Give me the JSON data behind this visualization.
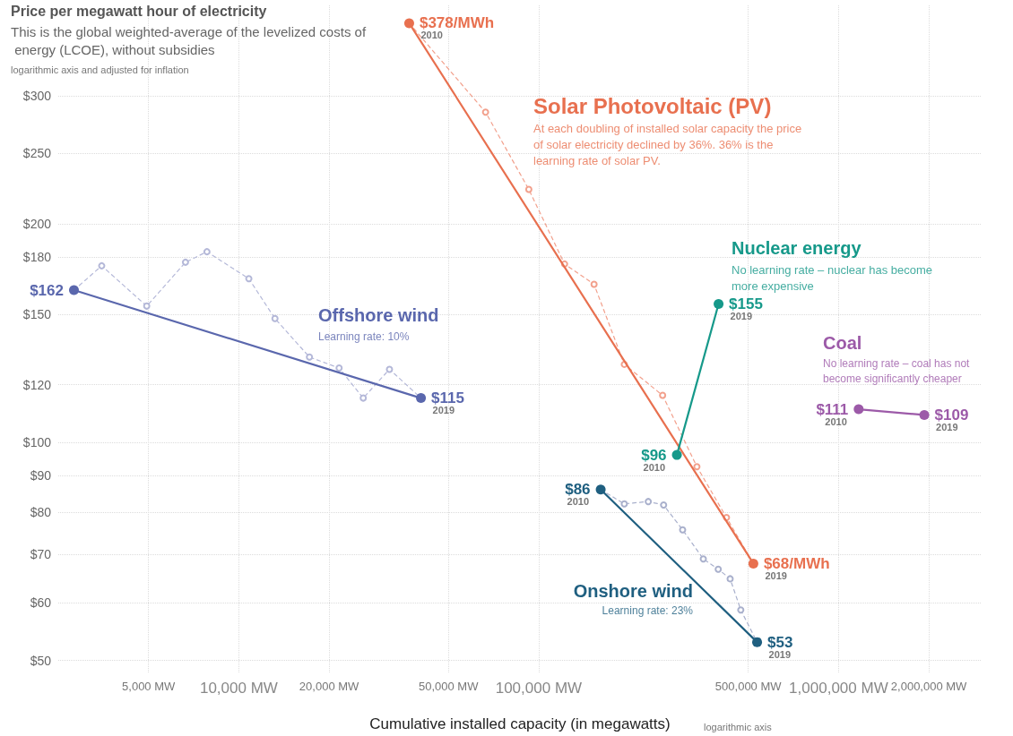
{
  "chart_data": {
    "type": "line",
    "title": "Price per megawatt hour of electricity",
    "subtitle": "This is the global weighted-average of the levelized costs of energy (LCOE), without subsidies",
    "xlabel": "Cumulative installed capacity (in megawatts)",
    "log": "xy",
    "grid": true,
    "legend": false,
    "xlim": [
      2500,
      3000000
    ],
    "ylim": [
      48,
      400
    ],
    "xticks": [
      {
        "value": 5000,
        "label": "5,000 MW"
      },
      {
        "value": 10000,
        "label": "10,000 MW"
      },
      {
        "value": 20000,
        "label": "20,000 MW"
      },
      {
        "value": 50000,
        "label": "50,000 MW"
      },
      {
        "value": 100000,
        "label": "100,000 MW"
      },
      {
        "value": 500000,
        "label": "500,000 MW"
      },
      {
        "value": 1000000,
        "label": "1,000,000 MW"
      },
      {
        "value": 2000000,
        "label": "2,000,000 MW"
      }
    ],
    "yticks": [
      {
        "value": 50,
        "label": "$50"
      },
      {
        "value": 60,
        "label": "$60"
      },
      {
        "value": 70,
        "label": "$70"
      },
      {
        "value": 80,
        "label": "$80"
      },
      {
        "value": 90,
        "label": "$90"
      },
      {
        "value": 100,
        "label": "$100"
      },
      {
        "value": 120,
        "label": "$120"
      },
      {
        "value": 150,
        "label": "$150"
      },
      {
        "value": 180,
        "label": "$180"
      },
      {
        "value": 200,
        "label": "$200"
      },
      {
        "value": 250,
        "label": "$250"
      },
      {
        "value": 300,
        "label": "$300"
      }
    ],
    "series": [
      {
        "color": "#f2a08c",
        "line_style": "dashed",
        "marker": "circle",
        "x": [
          37000,
          66500,
          92700,
          122000,
          153000,
          193000,
          259000,
          337000,
          423000,
          520000
        ],
        "values": [
          378,
          285,
          223,
          176,
          165,
          128,
          116,
          92.5,
          78.7,
          68
        ]
      },
      {
        "name": "Solar Photovoltaic (PV)",
        "color": "#e8704f",
        "line_style": "solid",
        "marker": "circle",
        "x": [
          37000,
          520000
        ],
        "values": [
          378,
          68
        ],
        "value_labels": [
          "$378/MWh",
          "$68/MWh"
        ]
      },
      {
        "color": "#b4b8d8",
        "line_style": "dashed",
        "marker": "circle",
        "x": [
          2820,
          3490,
          4930,
          6640,
          7830,
          10800,
          13200,
          17200,
          21600,
          26000,
          31800,
          40500
        ],
        "values": [
          162,
          175,
          154,
          177,
          183,
          168,
          148,
          131,
          126.5,
          115,
          126,
          115
        ]
      },
      {
        "name": "Offshore wind",
        "color": "#5a67ad",
        "line_style": "solid",
        "marker": "circle",
        "x": [
          2820,
          40500
        ],
        "values": [
          162,
          115
        ],
        "value_labels": [
          "$162",
          "$115"
        ]
      },
      {
        "color": "#a9b0cc",
        "line_style": "dashed",
        "marker": "circle",
        "x": [
          161000,
          193000,
          232000,
          261000,
          302000,
          354000,
          397000,
          435000,
          472000,
          535000
        ],
        "values": [
          86,
          82.2,
          82.8,
          81.9,
          75.7,
          69,
          66.8,
          64.8,
          58.7,
          53
        ]
      },
      {
        "name": "Onshore wind",
        "color": "#1f5f80",
        "line_style": "solid",
        "marker": "circle",
        "x": [
          161000,
          535000
        ],
        "values": [
          86,
          53
        ],
        "value_labels": [
          "$86",
          "$53"
        ]
      },
      {
        "name": "Nuclear energy",
        "color": "#16998a",
        "line_style": "solid",
        "marker": "circle",
        "x": [
          289000,
          398000
        ],
        "values": [
          96,
          155
        ],
        "value_labels": [
          "$96",
          "$155"
        ]
      },
      {
        "name": "Coal",
        "color": "#9c5aa8",
        "line_style": "solid",
        "marker": "circle",
        "x": [
          1167000,
          1932000
        ],
        "values": [
          111,
          109
        ],
        "value_labels": [
          "$111",
          "$109"
        ]
      }
    ],
    "annotations": [
      "logarithmic axis and adjusted for inflation",
      "logarithmic axis",
      "At each doubling of installed solar capacity the price of solar electricity declined by 36%. 36% is the learning rate of solar PV.",
      "No learning rate – nuclear has become more expensive",
      "Learning rate: 10%",
      "Learning rate: 23%",
      "No learning rate – coal has not become significantly cheaper",
      {
        "text": "2010",
        "x": 37000,
        "y": 378
      },
      {
        "text": "2019",
        "x": 520000,
        "y": 68
      },
      {
        "text": "2019",
        "x": 40500,
        "y": 115
      },
      {
        "text": "2010",
        "x": 161000,
        "y": 86
      },
      {
        "text": "2019",
        "x": 535000,
        "y": 53
      },
      {
        "text": "2010",
        "x": 289000,
        "y": 96
      },
      {
        "text": "2019",
        "x": 398000,
        "y": 155
      },
      {
        "text": "2010",
        "x": 1167000,
        "y": 111
      },
      {
        "text": "2019",
        "x": 1932000,
        "y": 109
      }
    ]
  }
}
